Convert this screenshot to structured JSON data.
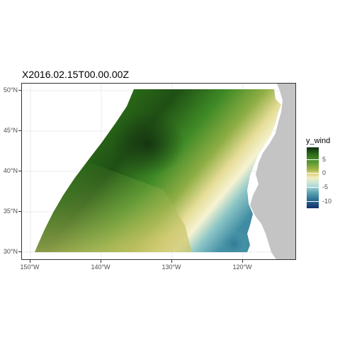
{
  "title": "X2016.02.15T00.00.00Z",
  "legend": {
    "title": "y_wind",
    "ticks": [
      "5",
      "0",
      "-5",
      "-10"
    ],
    "tick_values": [
      5,
      0,
      -5,
      -10
    ],
    "range": [
      -11.5,
      8.5
    ],
    "colors": [
      "#0f2d0f",
      "#2f6e1c",
      "#5a9a32",
      "#a8b84a",
      "#f3efc4",
      "#5fa6b4",
      "#2b6f93",
      "#14306a"
    ]
  },
  "axes": {
    "y_ticks": [
      "50°N",
      "45°N",
      "40°N",
      "35°N",
      "30°N"
    ],
    "y_values": [
      50,
      45,
      40,
      35,
      30
    ],
    "x_ticks": [
      "150°W",
      "140°W",
      "130°W",
      "120°W"
    ],
    "x_values": [
      -150,
      -140,
      -130,
      -120
    ]
  },
  "colors": {
    "land": "#c4c4c4",
    "panel_border": "#333333",
    "grid": "#ebebeb"
  }
}
